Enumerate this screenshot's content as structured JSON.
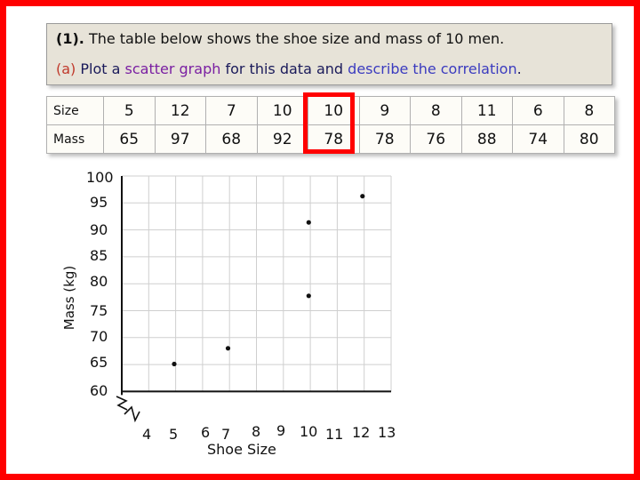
{
  "question": {
    "number": "(1).",
    "text": "The table below shows the shoe size and mass of 10 men.",
    "part_label": "(a)",
    "part_pieces": [
      "Plot a",
      "scatter graph",
      "for",
      "this data",
      "and",
      "describe the correlation",
      "."
    ]
  },
  "table": {
    "row_labels": [
      "Size",
      "Mass"
    ],
    "sizes": [
      "5",
      "12",
      "7",
      "10",
      "10",
      "9",
      "8",
      "11",
      "6",
      "8"
    ],
    "masses": [
      "65",
      "97",
      "68",
      "92",
      "78",
      "78",
      "76",
      "88",
      "74",
      "80"
    ],
    "highlighted_column": 5
  },
  "colors": {
    "frame": "#ff0000",
    "question_box": "#e7e3d8",
    "highlight": "#ff0000"
  },
  "chart_data": {
    "type": "scatter",
    "title": "",
    "xlabel": "Shoe Size",
    "ylabel": "Mass (kg)",
    "x_ticks": [
      "4",
      "5",
      "6",
      "7",
      "8",
      "9",
      "10",
      "11",
      "12",
      "13"
    ],
    "y_ticks": [
      "100",
      "95",
      "90",
      "85",
      "80",
      "75",
      "70",
      "65",
      "60"
    ],
    "xlim": [
      4,
      13
    ],
    "ylim": [
      60,
      100
    ],
    "axis_break": true,
    "grid": true,
    "points": [
      {
        "x": 5,
        "y": 65
      },
      {
        "x": 7,
        "y": 68
      },
      {
        "x": 10,
        "y": 92
      },
      {
        "x": 10,
        "y": 78
      },
      {
        "x": 12,
        "y": 97
      }
    ]
  }
}
